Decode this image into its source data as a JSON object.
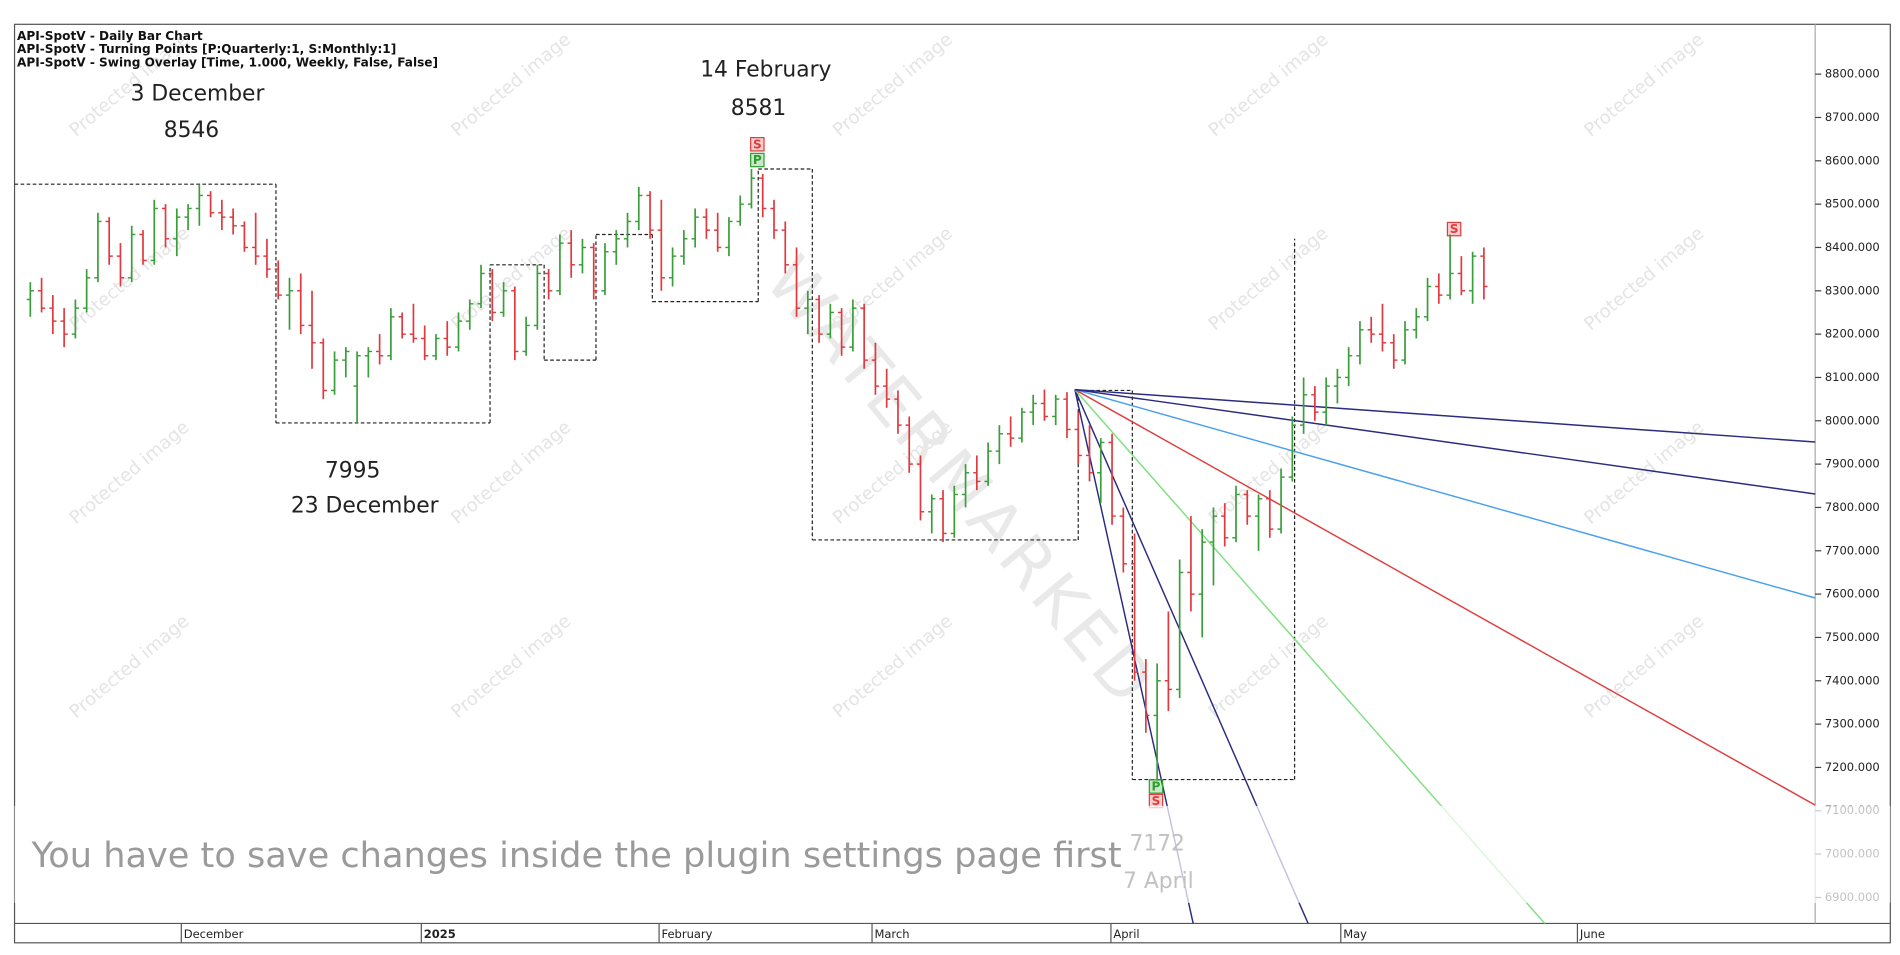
{
  "chart_data": {
    "type": "ohlc",
    "header": [
      "API-SpotV - Daily Bar Chart",
      "API-SpotV - Turning Points [P:Quarterly:1, S:Monthly:1]",
      "API-SpotV - Swing Overlay [Time, 1.000, Weekly, False, False]"
    ],
    "up_color": "#3a9e3a",
    "down_color": "#e0393e",
    "bars": [
      [
        8280,
        8320,
        8240,
        8300
      ],
      [
        8300,
        8330,
        8250,
        8260
      ],
      [
        8260,
        8290,
        8200,
        8230
      ],
      [
        8230,
        8260,
        8170,
        8200
      ],
      [
        8200,
        8280,
        8190,
        8260
      ],
      [
        8260,
        8350,
        8250,
        8330
      ],
      [
        8330,
        8480,
        8320,
        8460
      ],
      [
        8460,
        8470,
        8360,
        8380
      ],
      [
        8380,
        8410,
        8310,
        8330
      ],
      [
        8330,
        8450,
        8320,
        8430
      ],
      [
        8430,
        8440,
        8360,
        8370
      ],
      [
        8370,
        8510,
        8360,
        8490
      ],
      [
        8490,
        8500,
        8400,
        8420
      ],
      [
        8420,
        8490,
        8380,
        8470
      ],
      [
        8470,
        8500,
        8440,
        8490
      ],
      [
        8490,
        8546,
        8450,
        8520
      ],
      [
        8520,
        8530,
        8470,
        8480
      ],
      [
        8480,
        8510,
        8440,
        8470
      ],
      [
        8470,
        8490,
        8430,
        8450
      ],
      [
        8450,
        8460,
        8390,
        8400
      ],
      [
        8400,
        8480,
        8360,
        8380
      ],
      [
        8380,
        8420,
        8330,
        8350
      ],
      [
        8350,
        8370,
        8280,
        8290
      ],
      [
        8290,
        8330,
        8210,
        8300
      ],
      [
        8300,
        8340,
        8200,
        8220
      ],
      [
        8220,
        8300,
        8120,
        8180
      ],
      [
        8180,
        8190,
        8050,
        8070
      ],
      [
        8070,
        8160,
        8060,
        8140
      ],
      [
        8140,
        8170,
        8100,
        8160
      ],
      [
        8080,
        8160,
        7995,
        8150
      ],
      [
        8150,
        8170,
        8100,
        8160
      ],
      [
        8160,
        8200,
        8130,
        8150
      ],
      [
        8150,
        8260,
        8140,
        8240
      ],
      [
        8240,
        8250,
        8190,
        8200
      ],
      [
        8200,
        8270,
        8180,
        8190
      ],
      [
        8190,
        8220,
        8140,
        8150
      ],
      [
        8150,
        8200,
        8140,
        8190
      ],
      [
        8190,
        8230,
        8150,
        8170
      ],
      [
        8170,
        8250,
        8160,
        8230
      ],
      [
        8230,
        8280,
        8210,
        8270
      ],
      [
        8270,
        8360,
        8260,
        8340
      ],
      [
        8340,
        8350,
        8230,
        8250
      ],
      [
        8250,
        8320,
        8240,
        8300
      ],
      [
        8300,
        8310,
        8140,
        8160
      ],
      [
        8160,
        8240,
        8150,
        8220
      ],
      [
        8220,
        8360,
        8210,
        8340
      ],
      [
        8340,
        8350,
        8280,
        8300
      ],
      [
        8300,
        8430,
        8290,
        8410
      ],
      [
        8410,
        8440,
        8330,
        8360
      ],
      [
        8360,
        8420,
        8340,
        8400
      ],
      [
        8400,
        8410,
        8280,
        8300
      ],
      [
        8300,
        8410,
        8290,
        8390
      ],
      [
        8390,
        8440,
        8360,
        8420
      ],
      [
        8420,
        8480,
        8400,
        8460
      ],
      [
        8460,
        8540,
        8440,
        8520
      ],
      [
        8520,
        8530,
        8420,
        8440
      ],
      [
        8440,
        8510,
        8300,
        8330
      ],
      [
        8330,
        8400,
        8310,
        8380
      ],
      [
        8380,
        8440,
        8360,
        8420
      ],
      [
        8420,
        8490,
        8400,
        8470
      ],
      [
        8470,
        8490,
        8420,
        8440
      ],
      [
        8440,
        8480,
        8390,
        8400
      ],
      [
        8400,
        8470,
        8380,
        8460
      ],
      [
        8460,
        8520,
        8450,
        8500
      ],
      [
        8500,
        8581,
        8490,
        8560
      ],
      [
        8560,
        8570,
        8470,
        8490
      ],
      [
        8490,
        8510,
        8420,
        8440
      ],
      [
        8440,
        8460,
        8340,
        8360
      ],
      [
        8360,
        8400,
        8240,
        8260
      ],
      [
        8260,
        8300,
        8200,
        8280
      ],
      [
        8280,
        8290,
        8180,
        8200
      ],
      [
        8200,
        8270,
        8190,
        8250
      ],
      [
        8250,
        8260,
        8150,
        8170
      ],
      [
        8170,
        8280,
        8160,
        8260
      ],
      [
        8260,
        8270,
        8120,
        8140
      ],
      [
        8140,
        8180,
        8060,
        8080
      ],
      [
        8080,
        8120,
        8030,
        8050
      ],
      [
        8050,
        8070,
        7970,
        7990
      ],
      [
        7990,
        8010,
        7880,
        7900
      ],
      [
        7900,
        7920,
        7770,
        7790
      ],
      [
        7790,
        7830,
        7740,
        7820
      ],
      [
        7820,
        7840,
        7720,
        7740
      ],
      [
        7740,
        7850,
        7730,
        7830
      ],
      [
        7830,
        7900,
        7800,
        7880
      ],
      [
        7880,
        7920,
        7840,
        7860
      ],
      [
        7860,
        7950,
        7850,
        7930
      ],
      [
        7930,
        7990,
        7900,
        7970
      ],
      [
        7970,
        8010,
        7940,
        7960
      ],
      [
        7960,
        8030,
        7950,
        8020
      ],
      [
        8020,
        8060,
        7990,
        8040
      ],
      [
        8040,
        8072,
        8000,
        8010
      ],
      [
        8010,
        8060,
        7990,
        8050
      ],
      [
        8050,
        8066,
        7960,
        7980
      ],
      [
        7980,
        8020,
        7900,
        7920
      ],
      [
        7920,
        7990,
        7860,
        7880
      ],
      [
        7880,
        7960,
        7810,
        7950
      ],
      [
        7950,
        7970,
        7760,
        7780
      ],
      [
        7780,
        7800,
        7650,
        7670
      ],
      [
        7670,
        7740,
        7400,
        7420
      ],
      [
        7420,
        7450,
        7280,
        7320
      ],
      [
        7320,
        7440,
        7172,
        7400
      ],
      [
        7400,
        7560,
        7330,
        7380
      ],
      [
        7380,
        7680,
        7360,
        7650
      ],
      [
        7650,
        7780,
        7560,
        7600
      ],
      [
        7600,
        7750,
        7500,
        7720
      ],
      [
        7720,
        7800,
        7620,
        7780
      ],
      [
        7780,
        7810,
        7710,
        7730
      ],
      [
        7730,
        7850,
        7720,
        7830
      ],
      [
        7830,
        7840,
        7760,
        7780
      ],
      [
        7780,
        7830,
        7700,
        7820
      ],
      [
        7820,
        7840,
        7730,
        7750
      ],
      [
        7750,
        7890,
        7740,
        7870
      ],
      [
        7870,
        8010,
        7860,
        7990
      ],
      [
        7990,
        8100,
        7970,
        8060
      ],
      [
        8060,
        8080,
        8000,
        8020
      ],
      [
        8020,
        8100,
        7990,
        8080
      ],
      [
        8080,
        8120,
        8040,
        8100
      ],
      [
        8100,
        8170,
        8080,
        8150
      ],
      [
        8150,
        8230,
        8130,
        8210
      ],
      [
        8210,
        8240,
        8180,
        8200
      ],
      [
        8200,
        8270,
        8160,
        8180
      ],
      [
        8180,
        8200,
        8120,
        8140
      ],
      [
        8140,
        8230,
        8130,
        8210
      ],
      [
        8210,
        8260,
        8190,
        8240
      ],
      [
        8240,
        8330,
        8230,
        8310
      ],
      [
        8310,
        8340,
        8270,
        8290
      ],
      [
        8290,
        8430,
        8280,
        8340
      ],
      [
        8340,
        8380,
        8290,
        8300
      ],
      [
        8300,
        8390,
        8270,
        8380
      ],
      [
        8380,
        8400,
        8280,
        8310
      ]
    ],
    "xlim": [
      -1.4,
      158.4
    ],
    "xticks": [
      {
        "value": 13.4,
        "label": "December"
      },
      {
        "value": 34.7,
        "label": "2025"
      },
      {
        "value": 55.8,
        "label": "February"
      },
      {
        "value": 74.7,
        "label": "March"
      },
      {
        "value": 95.9,
        "label": "April"
      },
      {
        "value": 116.3,
        "label": "May"
      },
      {
        "value": 137.3,
        "label": "June"
      }
    ],
    "ylim": [
      6840,
      8915
    ],
    "yticks": [
      {
        "value": 6900,
        "label": "6900.000"
      },
      {
        "value": 7000,
        "label": "7000.000"
      },
      {
        "value": 7100,
        "label": "7100.000"
      },
      {
        "value": 7200,
        "label": "7200.000"
      },
      {
        "value": 7300,
        "label": "7300.000"
      },
      {
        "value": 7400,
        "label": "7400.000"
      },
      {
        "value": 7500,
        "label": "7500.000"
      },
      {
        "value": 7600,
        "label": "7600.000"
      },
      {
        "value": 7700,
        "label": "7700.000"
      },
      {
        "value": 7800,
        "label": "7800.000"
      },
      {
        "value": 7900,
        "label": "7900.000"
      },
      {
        "value": 8000,
        "label": "8000.000"
      },
      {
        "value": 8100,
        "label": "8100.000"
      },
      {
        "value": 8200,
        "label": "8200.000"
      },
      {
        "value": 8300,
        "label": "8300.000"
      },
      {
        "value": 8400,
        "label": "8400.000"
      },
      {
        "value": 8500,
        "label": "8500.000"
      },
      {
        "value": 8600,
        "label": "8600.000"
      },
      {
        "value": 8700,
        "label": "8700.000"
      },
      {
        "value": 8800,
        "label": "8800.000"
      }
    ],
    "swing_overlay": {
      "x": [
        -1.4,
        21.8,
        40.8,
        45.6,
        50.2,
        55.2,
        64.6,
        69.4,
        93,
        97.8,
        112.2
      ],
      "values": [
        8546,
        7995,
        8360,
        8140,
        8430,
        8275,
        8581,
        7725,
        8070,
        7172,
        8420
      ]
    },
    "fan": {
      "origin": [
        92.7,
        8072
      ],
      "lines": [
        {
          "color": "#2b2b80",
          "x": 103.2,
          "value": 6840
        },
        {
          "color": "#2b2b80",
          "x": 113.4,
          "value": 6840
        },
        {
          "color": "#7ee07e",
          "x": 134.4,
          "value": 6840
        },
        {
          "color": "#e03c3c",
          "x": 158.4,
          "value": 7113
        },
        {
          "color": "#4aa0f0",
          "x": 158.4,
          "value": 7591
        },
        {
          "color": "#2b2b80",
          "x": 158.4,
          "value": 7831
        },
        {
          "color": "#2b2b80",
          "x": 158.4,
          "value": 7951
        }
      ]
    },
    "annotations": [
      "3 December",
      "8546",
      "14 February",
      "8581",
      "7995",
      "23 December",
      "7172",
      "7 April"
    ],
    "markers": [
      {
        "text": "S",
        "color": "#e03c3c"
      },
      {
        "text": "P",
        "color": "#2e9e2e"
      },
      {
        "text": "P",
        "color": "#2e9e2e"
      },
      {
        "text": "S",
        "color": "#e03c3c"
      },
      {
        "text": "S",
        "color": "#e03c3c"
      }
    ],
    "watermark": "WATERMARKED",
    "protected_text": "Protected image",
    "banner": "You have to save changes inside the plugin settings page first"
  }
}
